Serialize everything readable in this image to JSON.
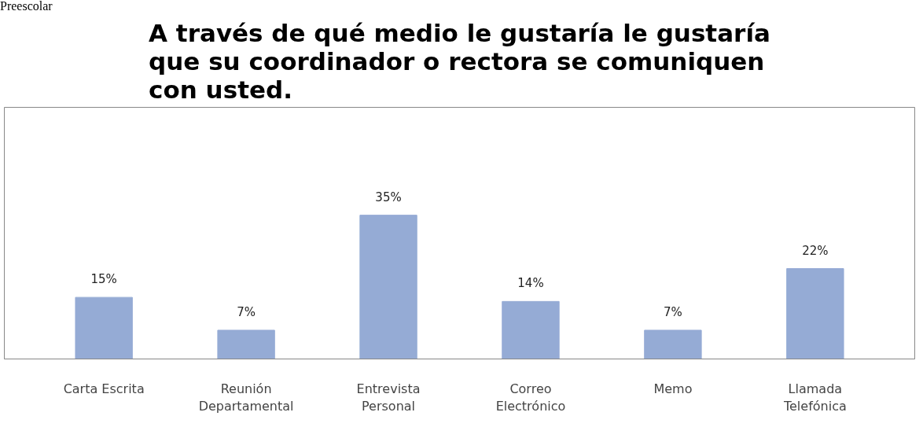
{
  "chart_data": {
    "type": "bar",
    "title": "A través de qué medio le gustaría le gustaría\nque su coordinador o rectora se comuniquen\ncon usted.",
    "categories": [
      "Carta Escrita",
      "Reunión\nDepartamental",
      "Entrevista\nPersonal",
      "Correo\nElectrónico",
      "Memo",
      "Llamada\nTelefónica"
    ],
    "values": [
      15,
      7,
      35,
      14,
      7,
      22
    ],
    "value_labels": [
      "15%",
      "7%",
      "35%",
      "14%",
      "7%",
      "22%"
    ],
    "color": "#95abd5",
    "grid": false,
    "annotations": [
      "Preescolar"
    ]
  }
}
